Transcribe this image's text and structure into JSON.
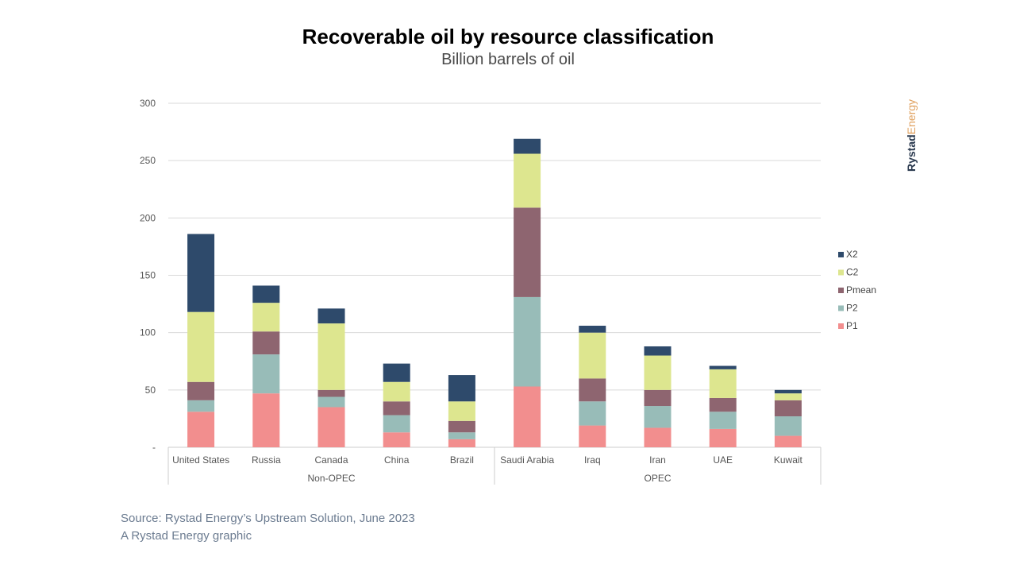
{
  "chart_data": {
    "type": "bar",
    "stacked": true,
    "title": "Recoverable oil by resource classification",
    "subtitle": "Billion barrels of oil",
    "categories": [
      "United States",
      "Russia",
      "Canada",
      "China",
      "Brazil",
      "Saudi Arabia",
      "Iraq",
      "Iran",
      "UAE",
      "Kuwait"
    ],
    "groups": [
      {
        "label": "Non-OPEC",
        "categories": [
          "United States",
          "Russia",
          "Canada",
          "China",
          "Brazil"
        ]
      },
      {
        "label": "OPEC",
        "categories": [
          "Saudi Arabia",
          "Iraq",
          "Iran",
          "UAE",
          "Kuwait"
        ]
      }
    ],
    "series": [
      {
        "name": "P1",
        "color": "#f28e8e",
        "values": [
          31,
          47,
          35,
          13,
          7,
          53,
          19,
          17,
          16,
          10
        ]
      },
      {
        "name": "P2",
        "color": "#98bcb8",
        "values": [
          10,
          34,
          9,
          15,
          6,
          78,
          21,
          19,
          15,
          17
        ]
      },
      {
        "name": "Pmean",
        "color": "#8e6570",
        "values": [
          16,
          20,
          6,
          12,
          10,
          78,
          20,
          14,
          12,
          14
        ]
      },
      {
        "name": "C2",
        "color": "#dde68f",
        "values": [
          61,
          25,
          58,
          17,
          17,
          47,
          40,
          30,
          25,
          6
        ]
      },
      {
        "name": "X2",
        "color": "#2e4a6b",
        "values": [
          68,
          15,
          13,
          16,
          23,
          13,
          6,
          8,
          3,
          3
        ]
      }
    ],
    "y_ticks": [
      "-",
      "50",
      "100",
      "150",
      "200",
      "250",
      "300"
    ],
    "ylim": [
      0,
      300
    ],
    "grid": true,
    "legend_position": "right",
    "legend_order": [
      "X2",
      "C2",
      "Pmean",
      "P2",
      "P1"
    ]
  },
  "brand": {
    "part1": "Rystad",
    "part2": "Energy",
    "color1": "#2b3a4f",
    "color2": "#e0a15f"
  },
  "source": {
    "line1": "Source: Rystad Energy’s Upstream Solution, June 2023",
    "line2": "A Rystad Energy graphic"
  }
}
